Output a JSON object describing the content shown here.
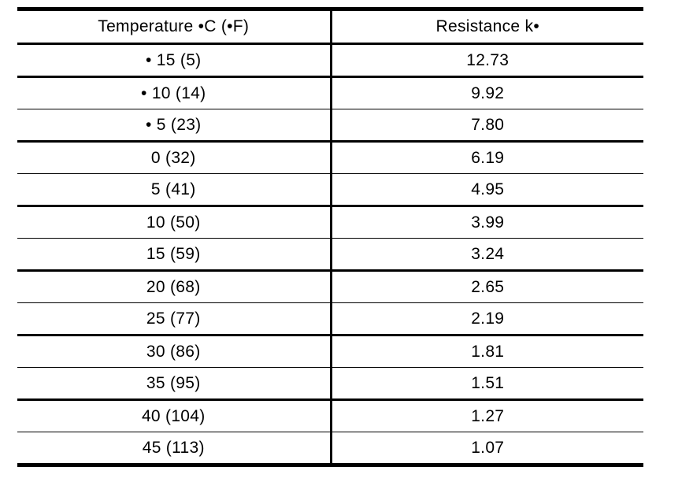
{
  "page": {
    "background": "#ffffff",
    "rule_color": "#000000",
    "text_color": "#000000"
  },
  "table": {
    "columns": [
      {
        "id": "temperature",
        "label": "Temperature •C (•F)"
      },
      {
        "id": "resistance",
        "label": "Resistance k•"
      }
    ],
    "rows": [
      {
        "temperature": "• 15 (5)",
        "resistance": "12.73",
        "rule_below": "thick"
      },
      {
        "temperature": "• 10 (14)",
        "resistance": "9.92",
        "rule_below": "thin"
      },
      {
        "temperature": "• 5 (23)",
        "resistance": "7.80",
        "rule_below": "thick"
      },
      {
        "temperature": "0 (32)",
        "resistance": "6.19",
        "rule_below": "thin"
      },
      {
        "temperature": "5 (41)",
        "resistance": "4.95",
        "rule_below": "thick"
      },
      {
        "temperature": "10 (50)",
        "resistance": "3.99",
        "rule_below": "thin"
      },
      {
        "temperature": "15 (59)",
        "resistance": "3.24",
        "rule_below": "thick"
      },
      {
        "temperature": "20 (68)",
        "resistance": "2.65",
        "rule_below": "thin"
      },
      {
        "temperature": "25 (77)",
        "resistance": "2.19",
        "rule_below": "thick"
      },
      {
        "temperature": "30 (86)",
        "resistance": "1.81",
        "rule_below": "thin"
      },
      {
        "temperature": "35 (95)",
        "resistance": "1.51",
        "rule_below": "thick"
      },
      {
        "temperature": "40 (104)",
        "resistance": "1.27",
        "rule_below": "thin"
      },
      {
        "temperature": "45 (113)",
        "resistance": "1.07",
        "rule_below": "bottom"
      }
    ]
  },
  "chart_data": {
    "type": "table",
    "title": "",
    "columns": [
      "Temperature •C (•F)",
      "Resistance k•"
    ],
    "rows": [
      [
        "• 15 (5)",
        "12.73"
      ],
      [
        "• 10 (14)",
        "9.92"
      ],
      [
        "• 5 (23)",
        "7.80"
      ],
      [
        "0 (32)",
        "6.19"
      ],
      [
        "5 (41)",
        "4.95"
      ],
      [
        "10 (50)",
        "3.99"
      ],
      [
        "15 (59)",
        "3.24"
      ],
      [
        "20 (68)",
        "2.65"
      ],
      [
        "25 (77)",
        "2.19"
      ],
      [
        "30 (86)",
        "1.81"
      ],
      [
        "35 (95)",
        "1.51"
      ],
      [
        "40 (104)",
        "1.27"
      ],
      [
        "45 (113)",
        "1.07"
      ]
    ]
  }
}
